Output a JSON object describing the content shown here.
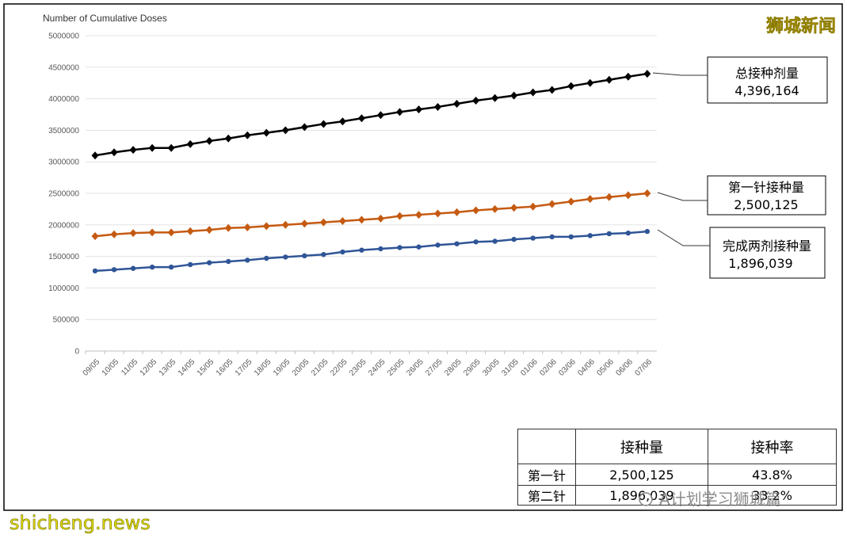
{
  "chart_data": {
    "type": "line",
    "y_axis_title": "Number of Cumulative Doses",
    "categories": [
      "09/05",
      "10/05",
      "11/05",
      "12/05",
      "13/05",
      "14/05",
      "15/05",
      "16/05",
      "17/05",
      "18/05",
      "19/05",
      "20/05",
      "21/05",
      "22/05",
      "23/05",
      "24/05",
      "25/05",
      "26/05",
      "27/05",
      "28/05",
      "29/05",
      "30/05",
      "31/05",
      "01/06",
      "02/06",
      "03/06",
      "04/06",
      "05/06",
      "06/06",
      "07/06"
    ],
    "ylim": [
      0,
      5000000
    ],
    "yticks": [
      0,
      500000,
      1000000,
      1500000,
      2000000,
      2500000,
      3000000,
      3500000,
      4000000,
      4500000,
      5000000
    ],
    "grid": true,
    "series": [
      {
        "name": "总接种剂量",
        "color": "#000000",
        "marker": "diamond",
        "values": [
          3100000,
          3150000,
          3190000,
          3220000,
          3220000,
          3280000,
          3330000,
          3370000,
          3420000,
          3460000,
          3500000,
          3550000,
          3600000,
          3640000,
          3690000,
          3740000,
          3790000,
          3830000,
          3870000,
          3920000,
          3970000,
          4010000,
          4050000,
          4100000,
          4140000,
          4200000,
          4250000,
          4300000,
          4350000,
          4396164
        ],
        "value_labels": [
          null,
          null,
          null,
          null,
          null,
          null,
          null,
          null,
          null,
          null,
          null,
          null,
          null,
          null,
          null,
          null,
          null,
          null,
          null,
          null,
          null,
          null,
          null,
          null,
          null,
          null,
          null,
          null,
          null,
          "4,396,164"
        ]
      },
      {
        "name": "第一针接种量",
        "color": "#c55a11",
        "marker": "diamond",
        "values": [
          1820000,
          1850000,
          1870000,
          1880000,
          1880000,
          1900000,
          1920000,
          1950000,
          1960000,
          1980000,
          2000000,
          2020000,
          2040000,
          2060000,
          2080000,
          2100000,
          2140000,
          2160000,
          2180000,
          2200000,
          2230000,
          2250000,
          2270000,
          2290000,
          2330000,
          2370000,
          2410000,
          2440000,
          2470000,
          2500125
        ],
        "value_labels": [
          null,
          null,
          null,
          null,
          null,
          null,
          null,
          null,
          null,
          null,
          null,
          null,
          null,
          null,
          null,
          null,
          null,
          null,
          null,
          null,
          null,
          null,
          null,
          null,
          null,
          null,
          null,
          null,
          null,
          "2,500,125"
        ]
      },
      {
        "name": "完成两剂接种量",
        "color": "#2f5597",
        "marker": "circle",
        "values": [
          1270000,
          1290000,
          1310000,
          1330000,
          1330000,
          1370000,
          1400000,
          1420000,
          1440000,
          1470000,
          1490000,
          1510000,
          1530000,
          1570000,
          1600000,
          1620000,
          1640000,
          1650000,
          1680000,
          1700000,
          1730000,
          1740000,
          1770000,
          1790000,
          1810000,
          1810000,
          1830000,
          1860000,
          1870000,
          1896039
        ],
        "value_labels": [
          null,
          null,
          null,
          null,
          null,
          null,
          null,
          null,
          null,
          null,
          null,
          null,
          null,
          null,
          null,
          null,
          null,
          null,
          null,
          null,
          null,
          null,
          null,
          null,
          null,
          null,
          null,
          null,
          null,
          "1,896,039"
        ]
      }
    ]
  },
  "table": {
    "header": [
      "接种量",
      "接种率"
    ],
    "rows": [
      [
        "第一针",
        "2,500,125",
        "43.8%"
      ],
      [
        "第二针",
        "1,896,039",
        "33.2%"
      ]
    ]
  },
  "watermarks": {
    "top_right": "狮城新闻",
    "bottom_left": "shicheng.news",
    "overlay": "A计划学习狮城篇"
  }
}
